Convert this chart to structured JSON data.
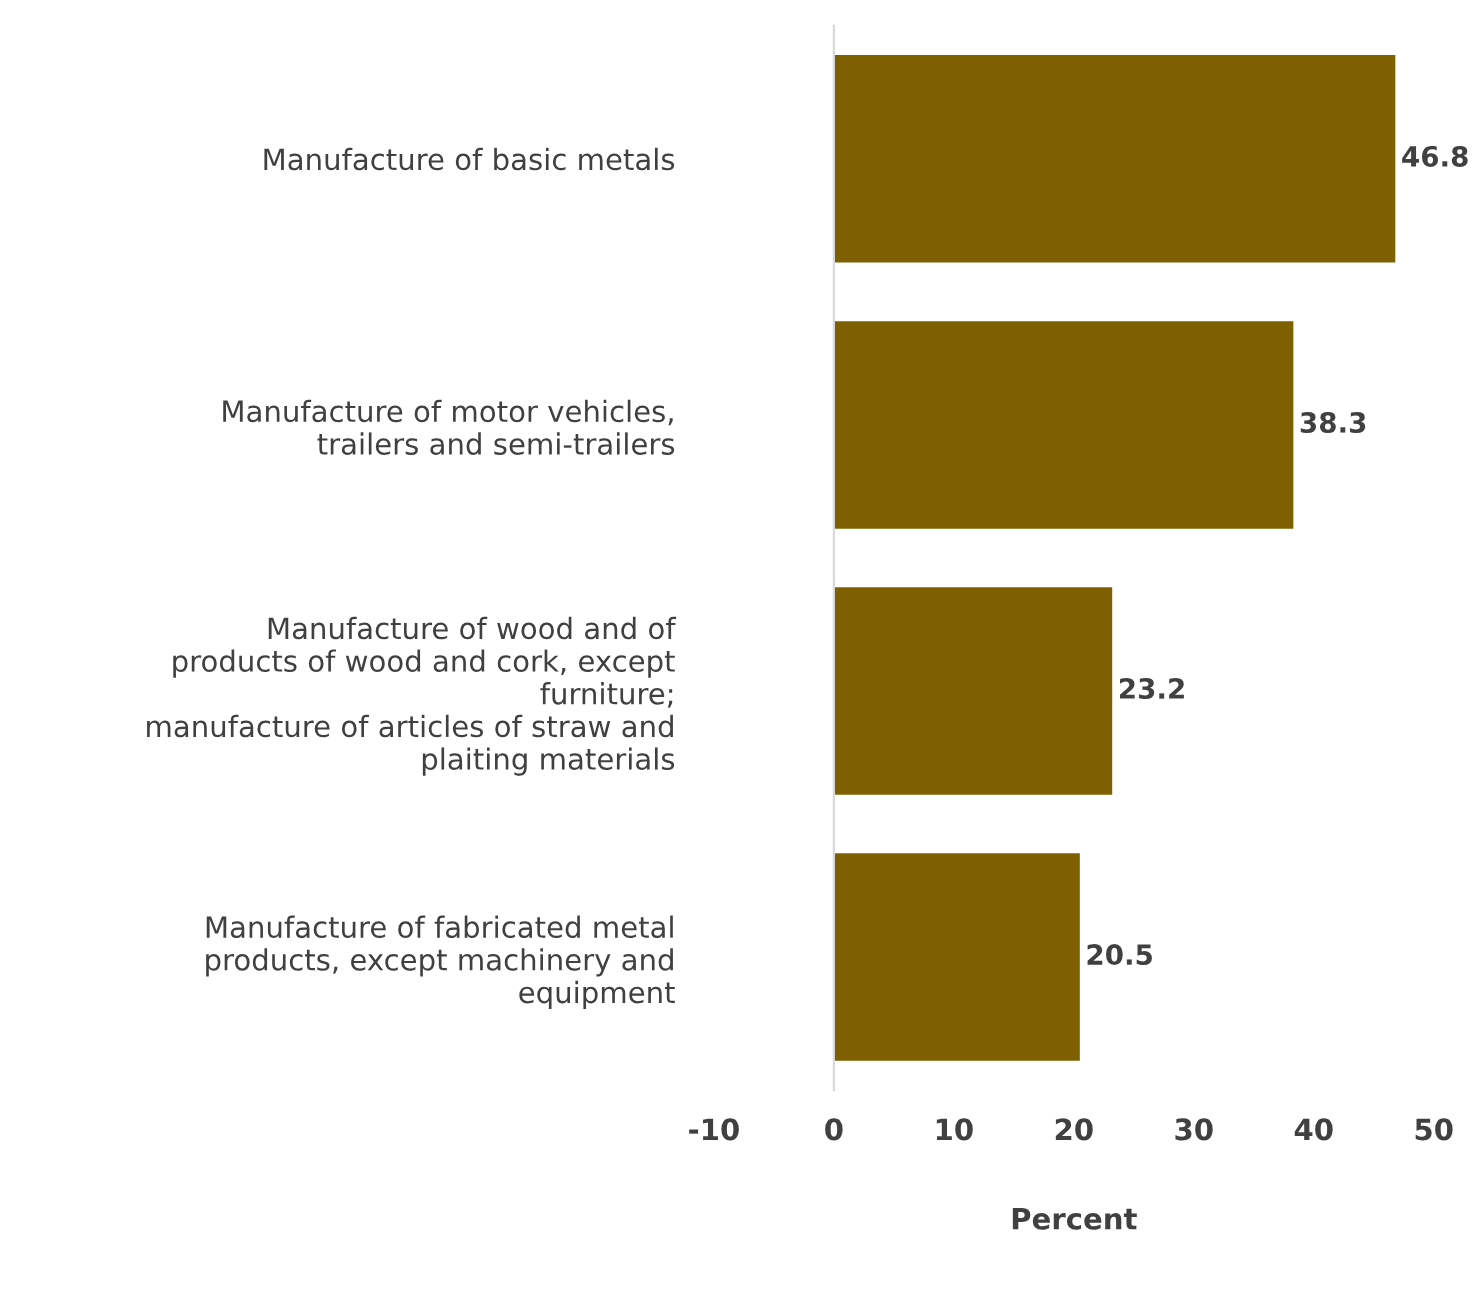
{
  "chart_data": {
    "type": "bar",
    "orientation": "horizontal",
    "xlabel": "Percent",
    "categories": [
      "Manufacture of basic metals",
      "Manufacture of motor vehicles,\ntrailers and semi-trailers",
      "Manufacture of wood and of\nproducts of wood and cork, except\nfurniture;\nmanufacture of articles of straw and\nplaiting materials",
      "Manufacture of fabricated metal\nproducts, except machinery and\nequipment"
    ],
    "values": [
      46.8,
      38.3,
      23.2,
      20.5
    ],
    "color": "#7f6000",
    "data_labels": true,
    "xlim": [
      -10,
      50
    ],
    "xticks": [
      -10,
      0,
      10,
      20,
      30,
      40,
      50
    ]
  }
}
